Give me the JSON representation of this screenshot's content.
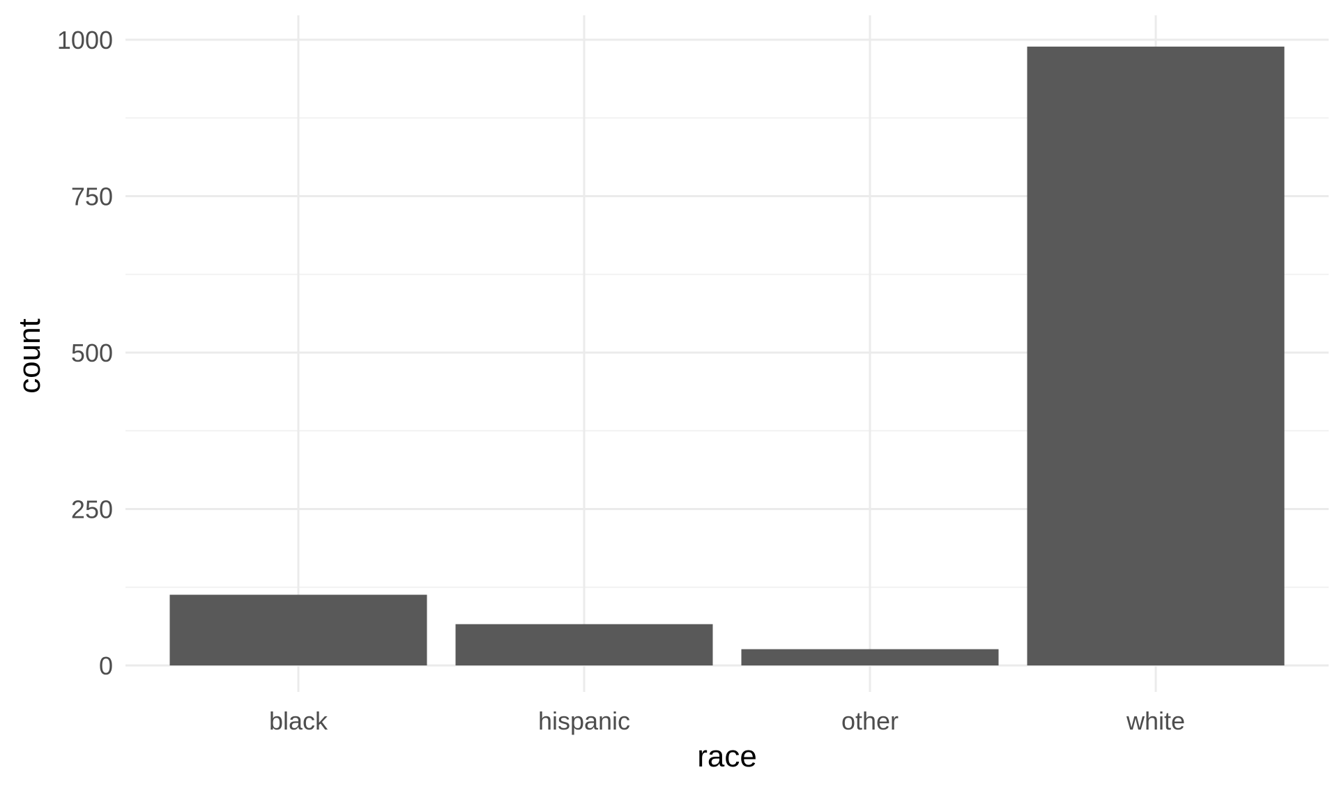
{
  "chart_data": {
    "type": "bar",
    "title": "",
    "xlabel": "race",
    "ylabel": "count",
    "categories": [
      "black",
      "hispanic",
      "other",
      "white"
    ],
    "values": [
      113,
      66,
      26,
      989
    ],
    "ylim": [
      0,
      1040
    ],
    "yticks": [
      0,
      250,
      500,
      750,
      1000
    ],
    "yticks_minor": [
      125,
      375,
      625,
      875
    ],
    "grid": true,
    "legend": "none",
    "colors": {
      "bar": "#595959",
      "grid_major": "#ebebeb",
      "grid_minor": "#f2f2f2",
      "tick_text": "#4d4d4d",
      "axis_title": "#000000",
      "background": "#ffffff"
    }
  }
}
